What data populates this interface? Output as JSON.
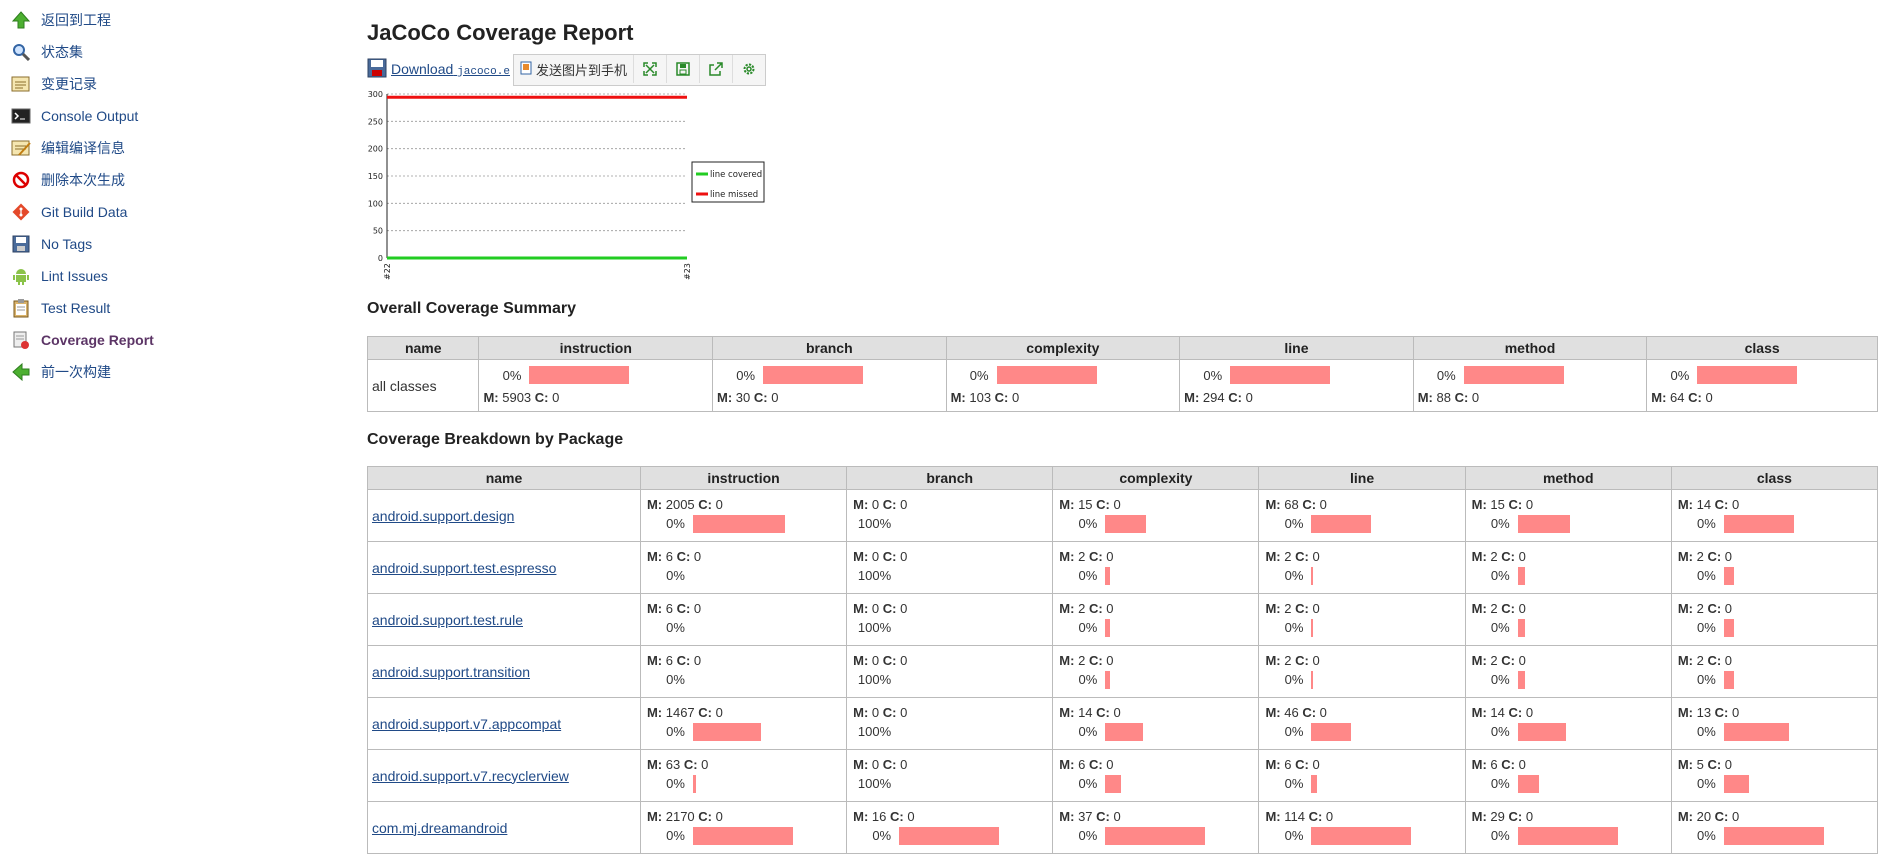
{
  "sidebar": {
    "items": [
      {
        "label": "返回到工程",
        "icon": "arrow-up-icon"
      },
      {
        "label": "状态集",
        "icon": "magnifier-icon"
      },
      {
        "label": "变更记录",
        "icon": "notepad-icon"
      },
      {
        "label": "Console Output",
        "icon": "terminal-icon"
      },
      {
        "label": "编辑编译信息",
        "icon": "notepad-edit-icon"
      },
      {
        "label": "删除本次生成",
        "icon": "no-entry-icon"
      },
      {
        "label": "Git Build Data",
        "icon": "git-icon"
      },
      {
        "label": "No Tags",
        "icon": "save-icon"
      },
      {
        "label": "Lint Issues",
        "icon": "android-icon"
      },
      {
        "label": "Test Result",
        "icon": "clipboard-icon"
      },
      {
        "label": "Coverage Report",
        "icon": "coverage-icon"
      },
      {
        "label": "前一次构建",
        "icon": "arrow-left-icon"
      }
    ]
  },
  "page": {
    "title": "JaCoCo Coverage Report",
    "download_label": "Download",
    "download_file": "jacoco.e",
    "toolbar_send": "发送图片到手机"
  },
  "chart_data": {
    "type": "line",
    "x": [
      "#22",
      "#23"
    ],
    "y_ticks": [
      0,
      50,
      100,
      150,
      200,
      250,
      300
    ],
    "ylim": [
      0,
      300
    ],
    "series": [
      {
        "name": "line covered",
        "color": "#22cc22",
        "values": [
          0,
          0
        ]
      },
      {
        "name": "line missed",
        "color": "#ee1111",
        "values": [
          294,
          294
        ]
      }
    ],
    "legend_position": "right"
  },
  "overall": {
    "heading": "Overall Coverage Summary",
    "headers": [
      "name",
      "instruction",
      "branch",
      "complexity",
      "line",
      "method",
      "class"
    ],
    "row_name": "all classes",
    "cells": [
      {
        "pct": "0%",
        "m": "5903",
        "c": "0",
        "fill": 1.0
      },
      {
        "pct": "0%",
        "m": "30",
        "c": "0",
        "fill": 1.0
      },
      {
        "pct": "0%",
        "m": "103",
        "c": "0",
        "fill": 1.0
      },
      {
        "pct": "0%",
        "m": "294",
        "c": "0",
        "fill": 1.0
      },
      {
        "pct": "0%",
        "m": "88",
        "c": "0",
        "fill": 1.0
      },
      {
        "pct": "0%",
        "m": "64",
        "c": "0",
        "fill": 1.0
      }
    ]
  },
  "breakdown": {
    "heading": "Coverage Breakdown by Package",
    "headers": [
      "name",
      "instruction",
      "branch",
      "complexity",
      "line",
      "method",
      "class"
    ],
    "m_label": "M:",
    "c_label": "C:",
    "rows": [
      {
        "name": "android.support.design",
        "cells": [
          {
            "m": "2005",
            "c": "0",
            "pct": "0%",
            "fill": 0.92
          },
          {
            "m": "0",
            "c": "0",
            "pct": "100%",
            "fill": 0
          },
          {
            "m": "15",
            "c": "0",
            "pct": "0%",
            "fill": 0.41
          },
          {
            "m": "68",
            "c": "0",
            "pct": "0%",
            "fill": 0.6
          },
          {
            "m": "15",
            "c": "0",
            "pct": "0%",
            "fill": 0.52
          },
          {
            "m": "14",
            "c": "0",
            "pct": "0%",
            "fill": 0.7
          }
        ]
      },
      {
        "name": "android.support.test.espresso",
        "cells": [
          {
            "m": "6",
            "c": "0",
            "pct": "0%",
            "fill": 0
          },
          {
            "m": "0",
            "c": "0",
            "pct": "100%",
            "fill": 0
          },
          {
            "m": "2",
            "c": "0",
            "pct": "0%",
            "fill": 0.05
          },
          {
            "m": "2",
            "c": "0",
            "pct": "0%",
            "fill": 0.02
          },
          {
            "m": "2",
            "c": "0",
            "pct": "0%",
            "fill": 0.07
          },
          {
            "m": "2",
            "c": "0",
            "pct": "0%",
            "fill": 0.1
          }
        ]
      },
      {
        "name": "android.support.test.rule",
        "cells": [
          {
            "m": "6",
            "c": "0",
            "pct": "0%",
            "fill": 0
          },
          {
            "m": "0",
            "c": "0",
            "pct": "100%",
            "fill": 0
          },
          {
            "m": "2",
            "c": "0",
            "pct": "0%",
            "fill": 0.05
          },
          {
            "m": "2",
            "c": "0",
            "pct": "0%",
            "fill": 0.02
          },
          {
            "m": "2",
            "c": "0",
            "pct": "0%",
            "fill": 0.07
          },
          {
            "m": "2",
            "c": "0",
            "pct": "0%",
            "fill": 0.1
          }
        ]
      },
      {
        "name": "android.support.transition",
        "cells": [
          {
            "m": "6",
            "c": "0",
            "pct": "0%",
            "fill": 0
          },
          {
            "m": "0",
            "c": "0",
            "pct": "100%",
            "fill": 0
          },
          {
            "m": "2",
            "c": "0",
            "pct": "0%",
            "fill": 0.05
          },
          {
            "m": "2",
            "c": "0",
            "pct": "0%",
            "fill": 0.02
          },
          {
            "m": "2",
            "c": "0",
            "pct": "0%",
            "fill": 0.07
          },
          {
            "m": "2",
            "c": "0",
            "pct": "0%",
            "fill": 0.1
          }
        ]
      },
      {
        "name": "android.support.v7.appcompat",
        "cells": [
          {
            "m": "1467",
            "c": "0",
            "pct": "0%",
            "fill": 0.68
          },
          {
            "m": "0",
            "c": "0",
            "pct": "100%",
            "fill": 0
          },
          {
            "m": "14",
            "c": "0",
            "pct": "0%",
            "fill": 0.38
          },
          {
            "m": "46",
            "c": "0",
            "pct": "0%",
            "fill": 0.4
          },
          {
            "m": "14",
            "c": "0",
            "pct": "0%",
            "fill": 0.48
          },
          {
            "m": "13",
            "c": "0",
            "pct": "0%",
            "fill": 0.65
          }
        ]
      },
      {
        "name": "android.support.v7.recyclerview",
        "cells": [
          {
            "m": "63",
            "c": "0",
            "pct": "0%",
            "fill": 0.03
          },
          {
            "m": "0",
            "c": "0",
            "pct": "100%",
            "fill": 0
          },
          {
            "m": "6",
            "c": "0",
            "pct": "0%",
            "fill": 0.16
          },
          {
            "m": "6",
            "c": "0",
            "pct": "0%",
            "fill": 0.06
          },
          {
            "m": "6",
            "c": "0",
            "pct": "0%",
            "fill": 0.21
          },
          {
            "m": "5",
            "c": "0",
            "pct": "0%",
            "fill": 0.25
          }
        ]
      },
      {
        "name": "com.mj.dreamandroid",
        "cells": [
          {
            "m": "2170",
            "c": "0",
            "pct": "0%",
            "fill": 1.0
          },
          {
            "m": "16",
            "c": "0",
            "pct": "0%",
            "fill": 1.0
          },
          {
            "m": "37",
            "c": "0",
            "pct": "0%",
            "fill": 1.0
          },
          {
            "m": "114",
            "c": "0",
            "pct": "0%",
            "fill": 1.0
          },
          {
            "m": "29",
            "c": "0",
            "pct": "0%",
            "fill": 1.0
          },
          {
            "m": "20",
            "c": "0",
            "pct": "0%",
            "fill": 1.0
          }
        ]
      }
    ]
  }
}
